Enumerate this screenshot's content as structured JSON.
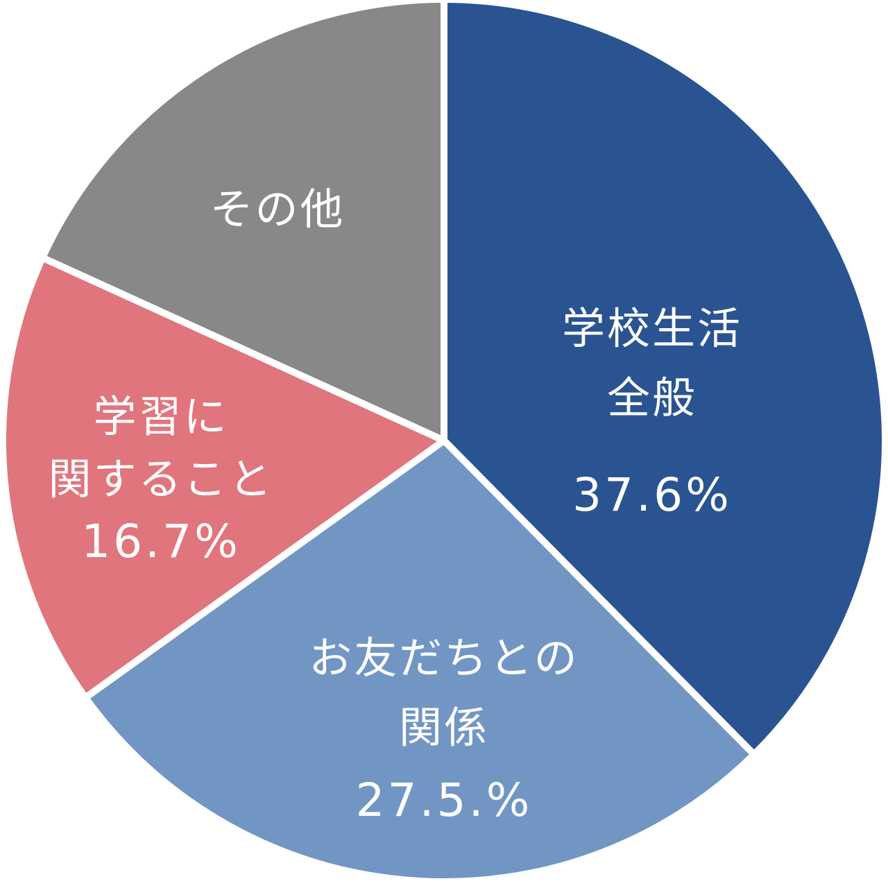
{
  "chart_data": {
    "type": "pie",
    "slices": [
      {
        "category": "学校生活全般",
        "label_lines": [
          "学校生活",
          "全般"
        ],
        "value": 37.6,
        "value_label": "37.6%",
        "color": "#2a5391"
      },
      {
        "category": "お友だちとの関係",
        "label_lines": [
          "お友だちとの",
          "関係"
        ],
        "value": 27.5,
        "value_label": "27.5.%",
        "color": "#7296c4"
      },
      {
        "category": "学習に関すること",
        "label_lines": [
          "学習に",
          "関すること"
        ],
        "value": 16.7,
        "value_label": "16.7%",
        "color": "#e0757d"
      },
      {
        "category": "その他",
        "label_lines": [
          "その他"
        ],
        "value": 18.2,
        "value_label": "",
        "color": "#888888"
      }
    ],
    "start": "12 o'clock",
    "direction": "clockwise",
    "legend": "none"
  }
}
